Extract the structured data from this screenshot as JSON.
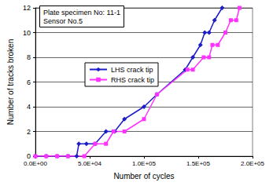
{
  "chart_data": {
    "type": "line",
    "annotation": [
      "Plate specimen No: 11-1",
      "Sensor No.5"
    ],
    "x_label": "Number of cycles",
    "y_label": "Number of tracks broken",
    "xlim": [
      0,
      200000
    ],
    "xticks": [
      {
        "value": 0,
        "label": "0.0E+00"
      },
      {
        "value": 50000,
        "label": "5.0E+04"
      },
      {
        "value": 100000,
        "label": "1.0E+05"
      },
      {
        "value": 150000,
        "label": "1.5E+05"
      },
      {
        "value": 200000,
        "label": "2.0E+05"
      }
    ],
    "ylim": [
      0,
      12
    ],
    "yticks": [
      0,
      2,
      4,
      6,
      8,
      10,
      12
    ],
    "grid": true,
    "legend": "left",
    "series": [
      {
        "name": "LHS crack tip",
        "color": "#1c1cc8",
        "marker": "diamond",
        "x": [
          0,
          10000,
          20000,
          30000,
          38000,
          40000,
          47000,
          55000,
          65000,
          73000,
          82000,
          100000,
          112000,
          138000,
          145000,
          152000,
          156000,
          160000,
          165000,
          172000
        ],
        "values": [
          0,
          0,
          0,
          0,
          0,
          1,
          1,
          1,
          2,
          2,
          3,
          4,
          5,
          7,
          8,
          9,
          10,
          10,
          11,
          12
        ]
      },
      {
        "name": "RHS crack tip",
        "color": "#ff33ff",
        "marker": "square",
        "x": [
          0,
          10000,
          20000,
          30000,
          45000,
          55000,
          65000,
          72000,
          82000,
          100000,
          112000,
          140000,
          145000,
          155000,
          160000,
          163000,
          168000,
          175000,
          180000,
          185000,
          188000
        ],
        "values": [
          0,
          0,
          0,
          0,
          0,
          1,
          1,
          2,
          2,
          3,
          5,
          7,
          7,
          8,
          8,
          9,
          9,
          10,
          11,
          11,
          12
        ]
      }
    ]
  }
}
